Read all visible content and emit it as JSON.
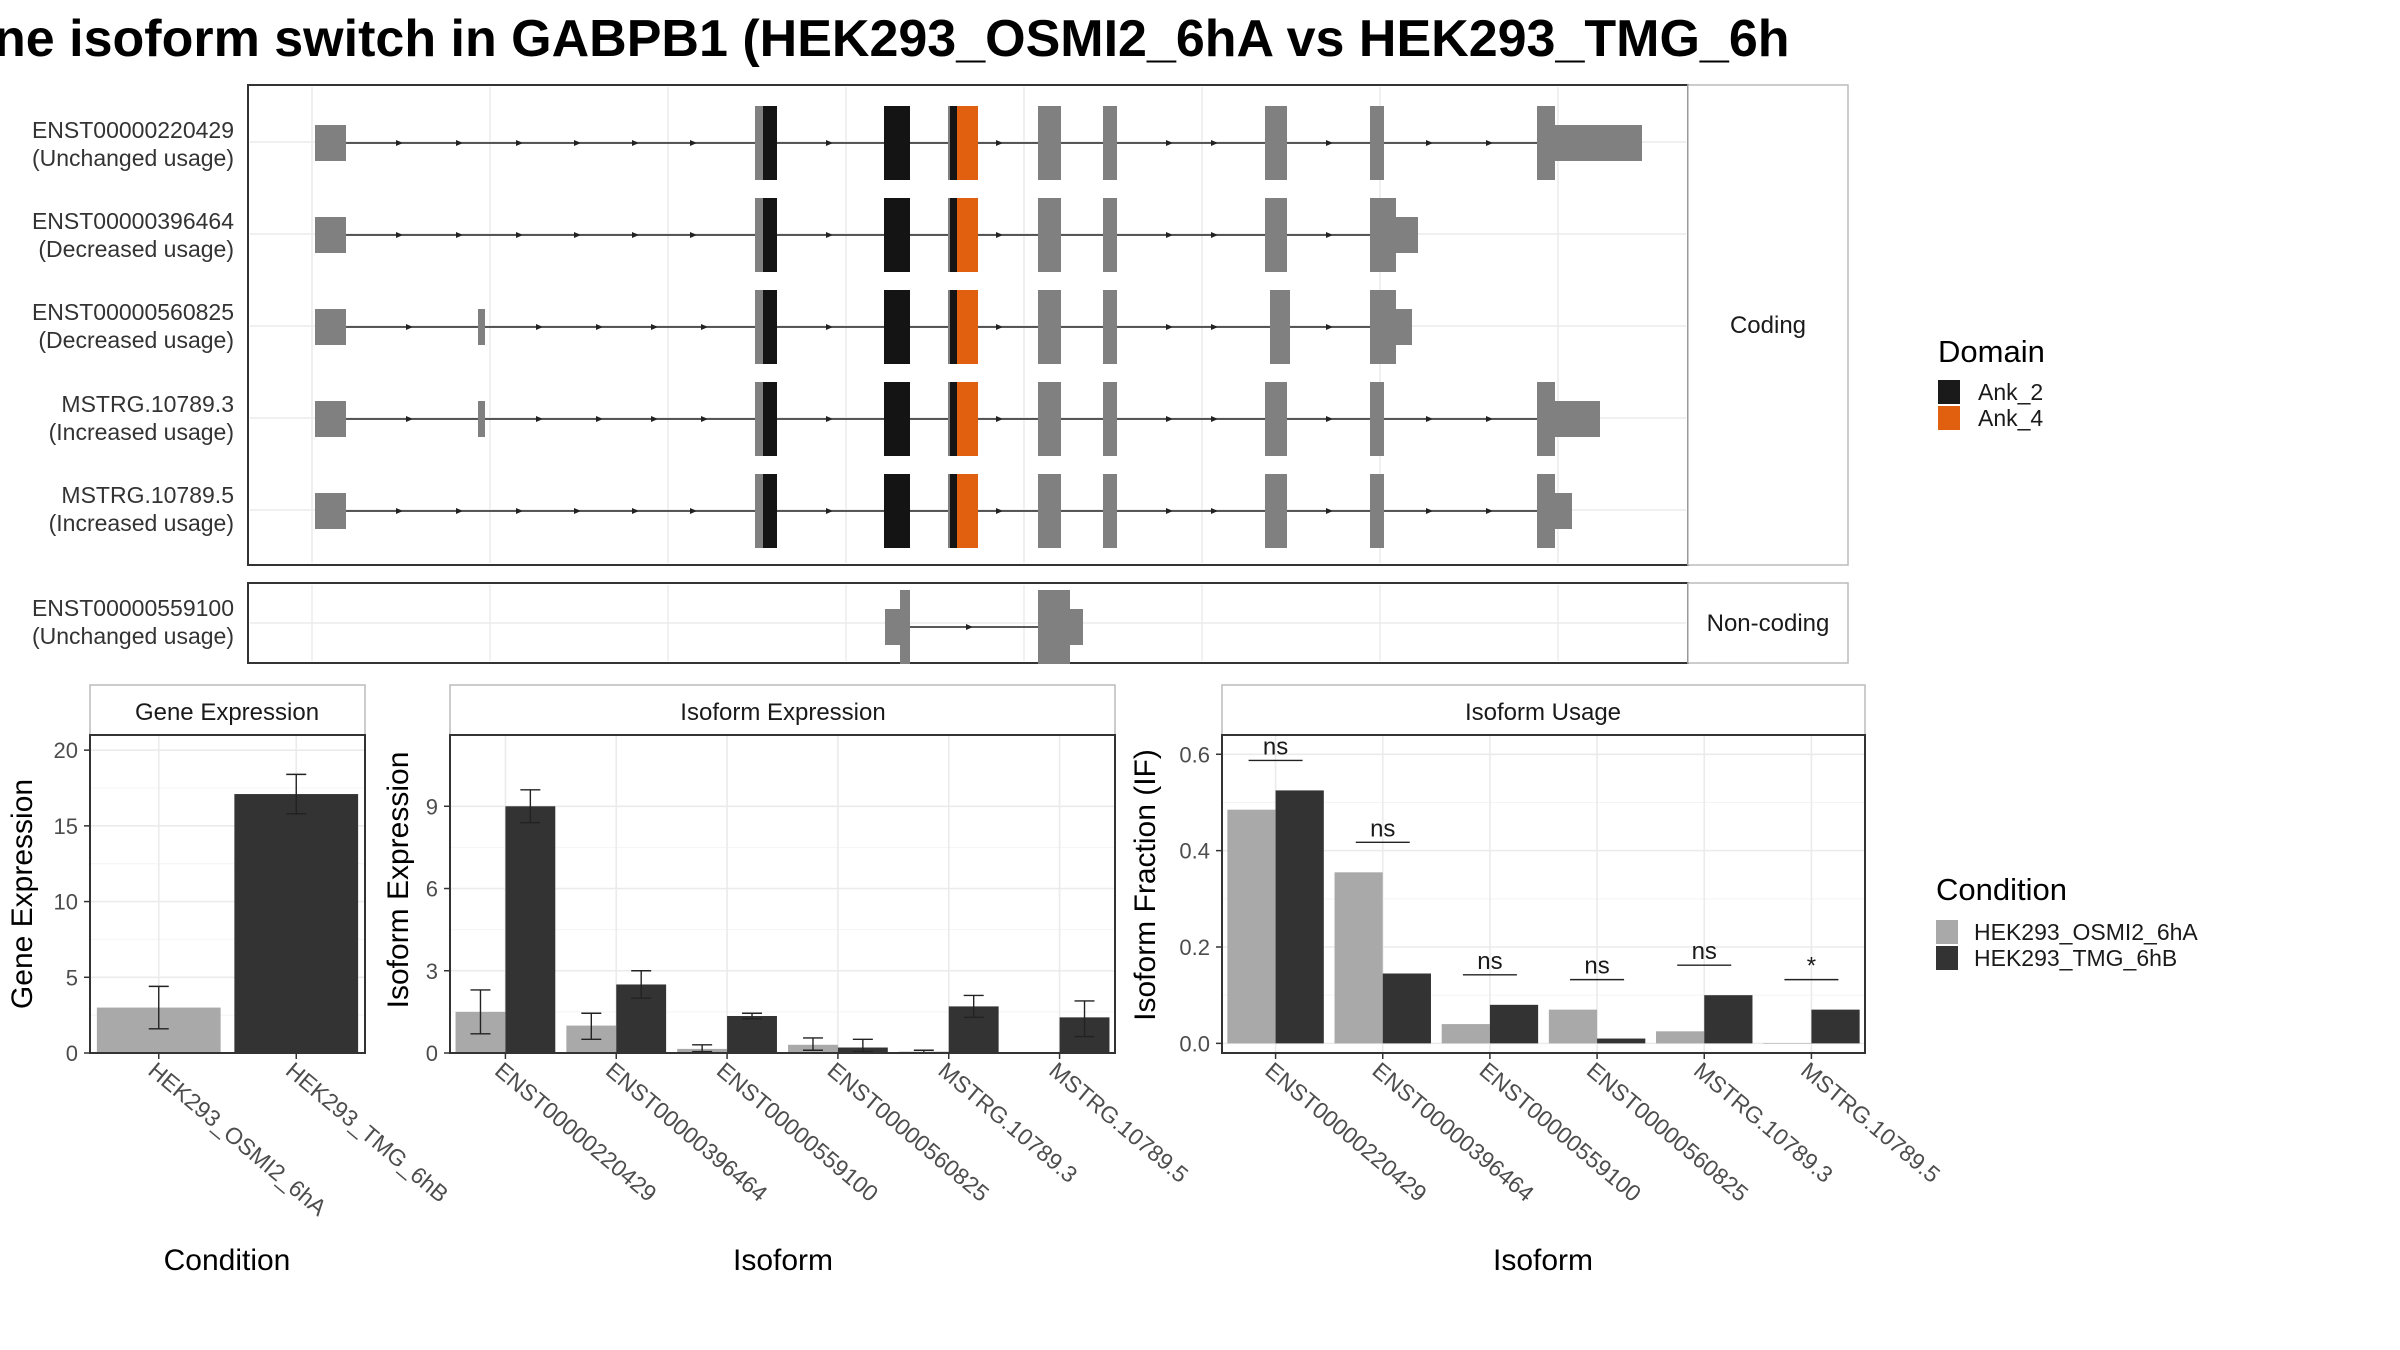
{
  "title": "ne isoform switch in GABPB1 (HEK293_OSMI2_6hA vs HEK293_TMG_6h",
  "structure": {
    "coding_strip": "Coding",
    "noncoding_strip": "Non-coding",
    "transcripts": [
      {
        "id": "ENST00000220429",
        "note": "(Unchanged usage)",
        "group": "coding"
      },
      {
        "id": "ENST00000396464",
        "note": "(Decreased usage)",
        "group": "coding"
      },
      {
        "id": "ENST00000560825",
        "note": "(Decreased usage)",
        "group": "coding"
      },
      {
        "id": "MSTRG.10789.3",
        "note": "(Increased usage)",
        "group": "coding"
      },
      {
        "id": "MSTRG.10789.5",
        "note": "(Increased usage)",
        "group": "coding"
      },
      {
        "id": "ENST00000559100",
        "note": "(Unchanged usage)",
        "group": "noncoding"
      }
    ]
  },
  "legend_domain": {
    "title": "Domain",
    "items": [
      {
        "label": "Ank_2",
        "color": "#1a1a1a"
      },
      {
        "label": "Ank_4",
        "color": "#e06010"
      }
    ]
  },
  "legend_condition": {
    "title": "Condition",
    "items": [
      {
        "label": "HEK293_OSMI2_6hA",
        "color": "#a9a9a9"
      },
      {
        "label": "HEK293_TMG_6hB",
        "color": "#333333"
      }
    ]
  },
  "chart_data": [
    {
      "type": "bar",
      "title": "Gene Expression",
      "xlabel": "Condition",
      "ylabel": "Gene Expression",
      "categories": [
        "HEK293_OSMI2_6hA",
        "HEK293_TMG_6hB"
      ],
      "values": [
        3.0,
        17.1
      ],
      "err_low": [
        1.6,
        15.8
      ],
      "err_high": [
        4.4,
        18.4
      ],
      "ylim": [
        0,
        21
      ],
      "yticks": [
        0,
        5,
        10,
        15,
        20
      ]
    },
    {
      "type": "bar",
      "title": "Isoform Expression",
      "xlabel": "Isoform",
      "ylabel": "Isoform Expression",
      "categories": [
        "ENST00000220429",
        "ENST00000396464",
        "ENST00000559100",
        "ENST00000560825",
        "MSTRG.10789.3",
        "MSTRG.10789.5"
      ],
      "series": [
        {
          "name": "HEK293_OSMI2_6hA",
          "values": [
            1.5,
            1.0,
            0.15,
            0.3,
            0.05,
            0.0
          ],
          "err_low": [
            0.7,
            0.5,
            0.05,
            0.1,
            0.0,
            0.0
          ],
          "err_high": [
            2.3,
            1.45,
            0.3,
            0.55,
            0.1,
            0.0
          ]
        },
        {
          "name": "HEK293_TMG_6hB",
          "values": [
            9.0,
            2.5,
            1.35,
            0.2,
            1.7,
            1.3
          ],
          "err_low": [
            8.4,
            2.0,
            1.25,
            0.05,
            1.3,
            0.6
          ],
          "err_high": [
            9.6,
            3.0,
            1.45,
            0.5,
            2.1,
            1.9
          ]
        }
      ],
      "ylim": [
        0,
        11.6
      ],
      "yticks": [
        0,
        3,
        6,
        9
      ]
    },
    {
      "type": "bar",
      "title": "Isoform Usage",
      "xlabel": "Isoform",
      "ylabel": "Isoform Fraction (IF)",
      "categories": [
        "ENST00000220429",
        "ENST00000396464",
        "ENST00000559100",
        "ENST00000560825",
        "MSTRG.10789.3",
        "MSTRG.10789.5"
      ],
      "series": [
        {
          "name": "HEK293_OSMI2_6hA",
          "values": [
            0.485,
            0.355,
            0.04,
            0.07,
            0.025,
            0.0
          ]
        },
        {
          "name": "HEK293_TMG_6hB",
          "values": [
            0.525,
            0.145,
            0.08,
            0.01,
            0.1,
            0.07
          ]
        }
      ],
      "significance": [
        "ns",
        "ns",
        "ns",
        "ns",
        "ns",
        "*"
      ],
      "ylim": [
        -0.02,
        0.64
      ],
      "yticks": [
        0.0,
        0.2,
        0.4,
        0.6
      ],
      "ytick_labels": [
        "0.0",
        "0.2",
        "0.4",
        "0.6"
      ]
    }
  ]
}
